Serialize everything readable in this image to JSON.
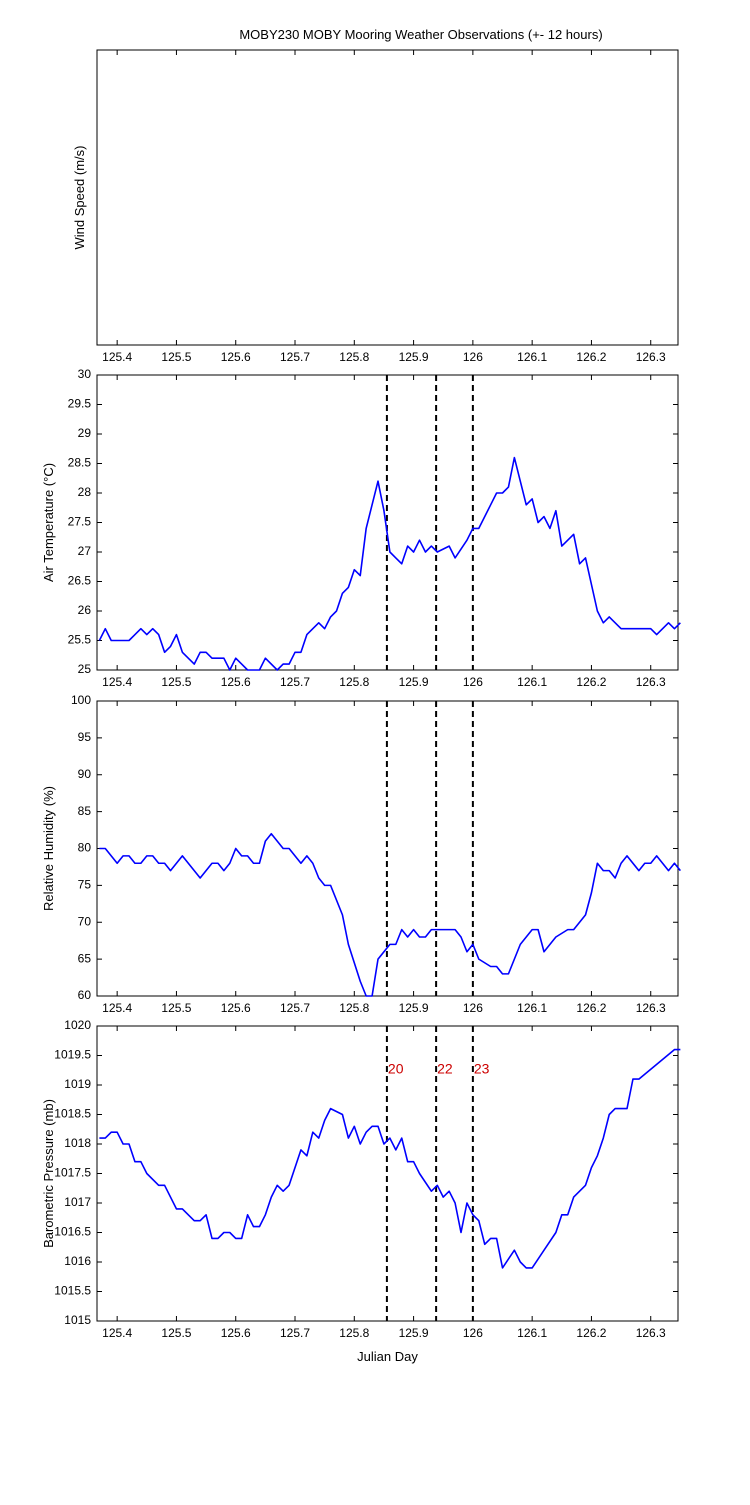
{
  "chart_data": [
    {
      "type": "line",
      "title": "MOBY230 MOBY Mooring Weather Observations (+- 12 hours)",
      "ylabel": "Wind Speed (m/s)",
      "xlim": [
        125.366,
        126.346
      ],
      "xticks": [
        125.4,
        125.5,
        125.6,
        125.7,
        125.8,
        125.9,
        126,
        126.1,
        126.2,
        126.3
      ]
    },
    {
      "type": "line",
      "ylabel": "Air Temperature (°C)",
      "color": "#0000ff",
      "xlim": [
        125.366,
        126.346
      ],
      "xticks": [
        125.4,
        125.5,
        125.6,
        125.7,
        125.8,
        125.9,
        126,
        126.1,
        126.2,
        126.3
      ],
      "ylim": [
        25,
        30
      ],
      "yticks": [
        25,
        25.5,
        26,
        26.5,
        27,
        27.5,
        28,
        28.5,
        29,
        29.5,
        30
      ],
      "vlines": [
        125.855,
        125.938,
        126.0
      ],
      "x": [
        125.37,
        125.38,
        125.39,
        125.42,
        125.44,
        125.45,
        125.46,
        125.47,
        125.48,
        125.49,
        125.5,
        125.51,
        125.53,
        125.54,
        125.55,
        125.56,
        125.58,
        125.59,
        125.6,
        125.61,
        125.62,
        125.64,
        125.65,
        125.67,
        125.68,
        125.69,
        125.7,
        125.71,
        125.72,
        125.74,
        125.75,
        125.76,
        125.77,
        125.78,
        125.79,
        125.8,
        125.81,
        125.82,
        125.84,
        125.85,
        125.86,
        125.87,
        125.88,
        125.89,
        125.9,
        125.91,
        125.92,
        125.93,
        125.94,
        125.96,
        125.97,
        125.99,
        126.0,
        126.01,
        126.03,
        126.04,
        126.05,
        126.06,
        126.07,
        126.08,
        126.09,
        126.1,
        126.11,
        126.12,
        126.13,
        126.14,
        126.15,
        126.17,
        126.18,
        126.19,
        126.21,
        126.22,
        126.23,
        126.25,
        126.3,
        126.31,
        126.33,
        126.34,
        126.35
      ],
      "values": [
        25.5,
        25.7,
        25.5,
        25.5,
        25.7,
        25.6,
        25.7,
        25.6,
        25.3,
        25.4,
        25.6,
        25.3,
        25.1,
        25.3,
        25.3,
        25.2,
        25.2,
        25.0,
        25.2,
        25.1,
        25.0,
        25.0,
        25.2,
        25.0,
        25.1,
        25.1,
        25.3,
        25.3,
        25.6,
        25.8,
        25.7,
        25.9,
        26.0,
        26.3,
        26.4,
        26.7,
        26.6,
        27.4,
        28.2,
        27.7,
        27.0,
        26.9,
        26.8,
        27.1,
        27.0,
        27.2,
        27.0,
        27.1,
        27.0,
        27.1,
        26.9,
        27.2,
        27.4,
        27.4,
        27.8,
        28.0,
        28.0,
        28.1,
        28.6,
        28.2,
        27.8,
        27.9,
        27.5,
        27.6,
        27.4,
        27.7,
        27.1,
        27.3,
        26.8,
        26.9,
        26.0,
        25.8,
        25.9,
        25.7,
        25.7,
        25.6,
        25.8,
        25.7,
        25.8
      ]
    },
    {
      "type": "line",
      "ylabel": "Relative Humidity (%)",
      "color": "#0000ff",
      "xlim": [
        125.366,
        126.346
      ],
      "xticks": [
        125.4,
        125.5,
        125.6,
        125.7,
        125.8,
        125.9,
        126,
        126.1,
        126.2,
        126.3
      ],
      "ylim": [
        60,
        100
      ],
      "yticks": [
        60,
        65,
        70,
        75,
        80,
        85,
        90,
        95,
        100
      ],
      "vlines": [
        125.855,
        125.938,
        126.0
      ],
      "x": [
        125.37,
        125.38,
        125.4,
        125.41,
        125.42,
        125.43,
        125.44,
        125.45,
        125.46,
        125.47,
        125.48,
        125.49,
        125.5,
        125.51,
        125.53,
        125.54,
        125.56,
        125.57,
        125.58,
        125.59,
        125.6,
        125.61,
        125.62,
        125.63,
        125.64,
        125.65,
        125.66,
        125.68,
        125.69,
        125.71,
        125.72,
        125.73,
        125.74,
        125.75,
        125.76,
        125.78,
        125.79,
        125.81,
        125.82,
        125.83,
        125.84,
        125.86,
        125.87,
        125.88,
        125.89,
        125.9,
        125.91,
        125.92,
        125.93,
        125.97,
        125.98,
        125.99,
        126.0,
        126.01,
        126.03,
        126.04,
        126.05,
        126.06,
        126.08,
        126.1,
        126.11,
        126.12,
        126.14,
        126.16,
        126.17,
        126.19,
        126.2,
        126.21,
        126.22,
        126.23,
        126.24,
        126.25,
        126.26,
        126.28,
        126.29,
        126.3,
        126.31,
        126.33,
        126.34,
        126.35
      ],
      "values": [
        80,
        80,
        78,
        79,
        79,
        78,
        78,
        79,
        79,
        78,
        78,
        77,
        78,
        79,
        77,
        76,
        78,
        78,
        77,
        78,
        80,
        79,
        79,
        78,
        78,
        81,
        82,
        80,
        80,
        78,
        79,
        78,
        76,
        75,
        75,
        71,
        67,
        62,
        60,
        60,
        65,
        67,
        67,
        69,
        68,
        69,
        68,
        68,
        69,
        69,
        68,
        66,
        67,
        65,
        64,
        64,
        63,
        63,
        67,
        69,
        69,
        66,
        68,
        69,
        69,
        71,
        74,
        78,
        77,
        77,
        76,
        78,
        79,
        77,
        78,
        78,
        79,
        77,
        78,
        77
      ]
    },
    {
      "type": "line",
      "ylabel": "Barometric Pressure (mb)",
      "xlabel": "Julian Day",
      "color": "#0000ff",
      "xlim": [
        125.366,
        126.346
      ],
      "xticks": [
        125.4,
        125.5,
        125.6,
        125.7,
        125.8,
        125.9,
        126,
        126.1,
        126.2,
        126.3
      ],
      "ylim": [
        1015,
        1020
      ],
      "yticks": [
        1015,
        1015.5,
        1016,
        1016.5,
        1017,
        1017.5,
        1018,
        1018.5,
        1019,
        1019.5,
        1020
      ],
      "vlines": [
        125.855,
        125.938,
        126.0
      ],
      "vline_labels": [
        "20",
        "22",
        "23"
      ],
      "vline_label_color": "#cc0000",
      "x": [
        125.37,
        125.38,
        125.39,
        125.4,
        125.41,
        125.42,
        125.43,
        125.44,
        125.45,
        125.47,
        125.48,
        125.5,
        125.51,
        125.53,
        125.54,
        125.55,
        125.56,
        125.57,
        125.58,
        125.59,
        125.6,
        125.61,
        125.62,
        125.63,
        125.64,
        125.65,
        125.66,
        125.67,
        125.68,
        125.69,
        125.71,
        125.72,
        125.73,
        125.74,
        125.75,
        125.76,
        125.78,
        125.79,
        125.8,
        125.81,
        125.82,
        125.83,
        125.84,
        125.85,
        125.86,
        125.87,
        125.88,
        125.89,
        125.9,
        125.91,
        125.93,
        125.94,
        125.95,
        125.96,
        125.97,
        125.98,
        125.99,
        126.0,
        126.01,
        126.02,
        126.03,
        126.04,
        126.05,
        126.07,
        126.08,
        126.09,
        126.1,
        126.12,
        126.14,
        126.15,
        126.16,
        126.17,
        126.19,
        126.2,
        126.21,
        126.22,
        126.23,
        126.24,
        126.26,
        126.27,
        126.28,
        126.34,
        126.35
      ],
      "values": [
        1018.1,
        1018.1,
        1018.2,
        1018.2,
        1018.0,
        1018.0,
        1017.7,
        1017.7,
        1017.5,
        1017.3,
        1017.3,
        1016.9,
        1016.9,
        1016.7,
        1016.7,
        1016.8,
        1016.4,
        1016.4,
        1016.5,
        1016.5,
        1016.4,
        1016.4,
        1016.8,
        1016.6,
        1016.6,
        1016.8,
        1017.1,
        1017.3,
        1017.2,
        1017.3,
        1017.9,
        1017.8,
        1018.2,
        1018.1,
        1018.4,
        1018.6,
        1018.5,
        1018.1,
        1018.3,
        1018.0,
        1018.2,
        1018.3,
        1018.3,
        1018.0,
        1018.1,
        1017.9,
        1018.1,
        1017.7,
        1017.7,
        1017.5,
        1017.2,
        1017.3,
        1017.1,
        1017.2,
        1017.0,
        1016.5,
        1017.0,
        1016.8,
        1016.7,
        1016.3,
        1016.4,
        1016.4,
        1015.9,
        1016.2,
        1016.0,
        1015.9,
        1015.9,
        1016.2,
        1016.5,
        1016.8,
        1016.8,
        1017.1,
        1017.3,
        1017.6,
        1017.8,
        1018.1,
        1018.5,
        1018.6,
        1018.6,
        1019.1,
        1019.1,
        1019.6,
        1019.6
      ]
    }
  ]
}
